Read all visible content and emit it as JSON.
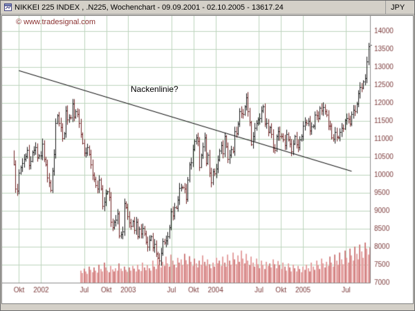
{
  "window": {
    "title": "NIKKEI 225 INDEX , .N225, Wochenchart - 09.09.2001 - 02.10.2005 - 13617.24",
    "currency_label": "JPY",
    "copyright": "© www.tradesignal.com"
  },
  "colors": {
    "window_bg": "#d4d0c8",
    "plot_bg": "#ffffff",
    "grid": "#bdd4bd",
    "axis_line": "#8a8a8a",
    "axis_text": "#7d3c3c",
    "copyright_text": "#8b3232",
    "bar_up": "#141414",
    "bar_down": "#6e2020",
    "volume_fill": "#e5a2a2",
    "volume_dark": "#cf8080",
    "trend_line": "#000000"
  },
  "chart_data": {
    "type": "candlestick-with-volume",
    "instrument": "NIKKEI 225 INDEX",
    "symbol": ".N225",
    "period": "Wochenchart",
    "start_date": "09.09.2001",
    "end_date": "02.10.2005",
    "last_value": 13617.24,
    "currency": "JPY",
    "y_axis": {
      "min": 7000,
      "max": 14000,
      "step": 500,
      "ticks": [
        14000,
        13500,
        13000,
        12500,
        12000,
        11500,
        11000,
        10500,
        10000,
        9500,
        9000,
        8500,
        8000,
        7500,
        7000
      ]
    },
    "x_axis": {
      "ticks": [
        {
          "label": "Okt",
          "week": 3.1
        },
        {
          "label": "2002",
          "week": 16.3
        },
        {
          "label": "Jul",
          "week": 42.1
        },
        {
          "label": "Okt",
          "week": 55.3
        },
        {
          "label": "2003",
          "week": 68.4
        },
        {
          "label": "Jul",
          "week": 94.3
        },
        {
          "label": "Okt",
          "week": 107.4
        },
        {
          "label": "2004",
          "week": 120.6
        },
        {
          "label": "Jul",
          "week": 146.6
        },
        {
          "label": "Okt",
          "week": 159.7
        },
        {
          "label": "2005",
          "week": 172.9
        },
        {
          "label": "Jul",
          "week": 198.7
        }
      ]
    },
    "first_open": 10650,
    "weekly_closes": [
      10293,
      9611,
      9554,
      10060,
      10206,
      10336,
      10441,
      10527,
      10699,
      10277,
      10394,
      10631,
      10697,
      10767,
      10475,
      10543,
      10543,
      10872,
      10443,
      10294,
      9919,
      9791,
      9577,
      10113,
      10572,
      11450,
      11648,
      11451,
      11333,
      11025,
      11151,
      11794,
      11530,
      11602,
      11601,
      11979,
      11619,
      11764,
      11690,
      11444,
      11144,
      10881,
      10621,
      10622,
      10769,
      10575,
      10290,
      9991,
      9877,
      9709,
      9619,
      9862,
      9619,
      9129,
      9241,
      9481,
      9530,
      9383,
      8688,
      8529,
      8690,
      8756,
      8914,
      8303,
      8344,
      8425,
      9216,
      9099,
      8847,
      8667,
      8579,
      8713,
      8470,
      8690,
      8292,
      8500,
      8360,
      8513,
      8363,
      8144,
      8002,
      8195,
      8281,
      7973,
      8074,
      7816,
      7699,
      7607,
      7831,
      8152,
      8117,
      8177,
      8281,
      8547,
      8980,
      8872,
      9104,
      9083,
      9301,
      9635,
      9653,
      9648,
      9611,
      9327,
      9863,
      10281,
      10343,
      10712,
      10938,
      11033,
      10938,
      10219,
      10559,
      10786,
      11037,
      10335,
      10567,
      10063,
      9786,
      10100,
      10045,
      10169,
      10417,
      10677,
      10825,
      10600,
      11069,
      10783,
      10444,
      10557,
      10720,
      10658,
      11210,
      11162,
      11418,
      11770,
      11715,
      11683,
      11897,
      12163,
      11761,
      11458,
      10849,
      11070,
      11309,
      11439,
      11532,
      11580,
      11780,
      11896,
      11423,
      11436,
      11187,
      11326,
      11129,
      10757,
      10687,
      11072,
      11209,
      11083,
      11082,
      10982,
      10824,
      11131,
      10981,
      10857,
      10659,
      10862,
      11082,
      10849,
      10771,
      10982,
      11073,
      11366,
      11468,
      11433,
      11503,
      11238,
      11341,
      11360,
      11664,
      11660,
      11568,
      11874,
      11781,
      11880,
      11761,
      11669,
      11375,
      11370,
      11046,
      11008,
      11193,
      11049,
      11037,
      11192,
      11300,
      11294,
      11514,
      11585,
      11565,
      11423,
      11696,
      11810,
      11766,
      11974,
      12264,
      12440,
      12414,
      12600,
      12692,
      13149,
      13574,
      13617
    ],
    "volumes": [
      0,
      0,
      0,
      0,
      0,
      0,
      0,
      0,
      0,
      0,
      0,
      0,
      0,
      0,
      0,
      0,
      0,
      0,
      0,
      0,
      0,
      0,
      0,
      0,
      0,
      0,
      0,
      0,
      0,
      0,
      0,
      0,
      0,
      0,
      0,
      0,
      0,
      0,
      0,
      0,
      30,
      24,
      35,
      28,
      22,
      40,
      32,
      26,
      38,
      30,
      25,
      45,
      34,
      28,
      50,
      38,
      30,
      26,
      42,
      33,
      28,
      36,
      30,
      48,
      35,
      29,
      40,
      32,
      27,
      38,
      30,
      42,
      35,
      28,
      45,
      33,
      29,
      50,
      38,
      31,
      44,
      36,
      30,
      55,
      40,
      34,
      60,
      45,
      38,
      52,
      42,
      65,
      48,
      40,
      70,
      55,
      45,
      38,
      62,
      50,
      58,
      44,
      72,
      56,
      46,
      66,
      52,
      42,
      60,
      48,
      38,
      55,
      45,
      68,
      52,
      42,
      58,
      46,
      36,
      50,
      40,
      62,
      48,
      55,
      42,
      65,
      50,
      40,
      70,
      55,
      45,
      75,
      58,
      46,
      68,
      52,
      80,
      60,
      48,
      72,
      55,
      44,
      65,
      50,
      40,
      60,
      46,
      36,
      55,
      44,
      34,
      52,
      42,
      48,
      38,
      58,
      46,
      36,
      54,
      44,
      34,
      50,
      40,
      30,
      48,
      38,
      28,
      45,
      36,
      28,
      42,
      34,
      26,
      40,
      32,
      45,
      36,
      28,
      50,
      40,
      32,
      55,
      44,
      34,
      60,
      48,
      38,
      52,
      42,
      65,
      50,
      40,
      70,
      55,
      45,
      75,
      58,
      46,
      80,
      62,
      50,
      85,
      68,
      55,
      90,
      72,
      58,
      95,
      78,
      62,
      100,
      85,
      70,
      88
    ],
    "trend_line": {
      "label": "Nackenlinie?",
      "from_week": 3,
      "from_value": 12900,
      "to_week": 202,
      "to_value": 10100,
      "label_week": 70,
      "label_value": 12520
    }
  }
}
